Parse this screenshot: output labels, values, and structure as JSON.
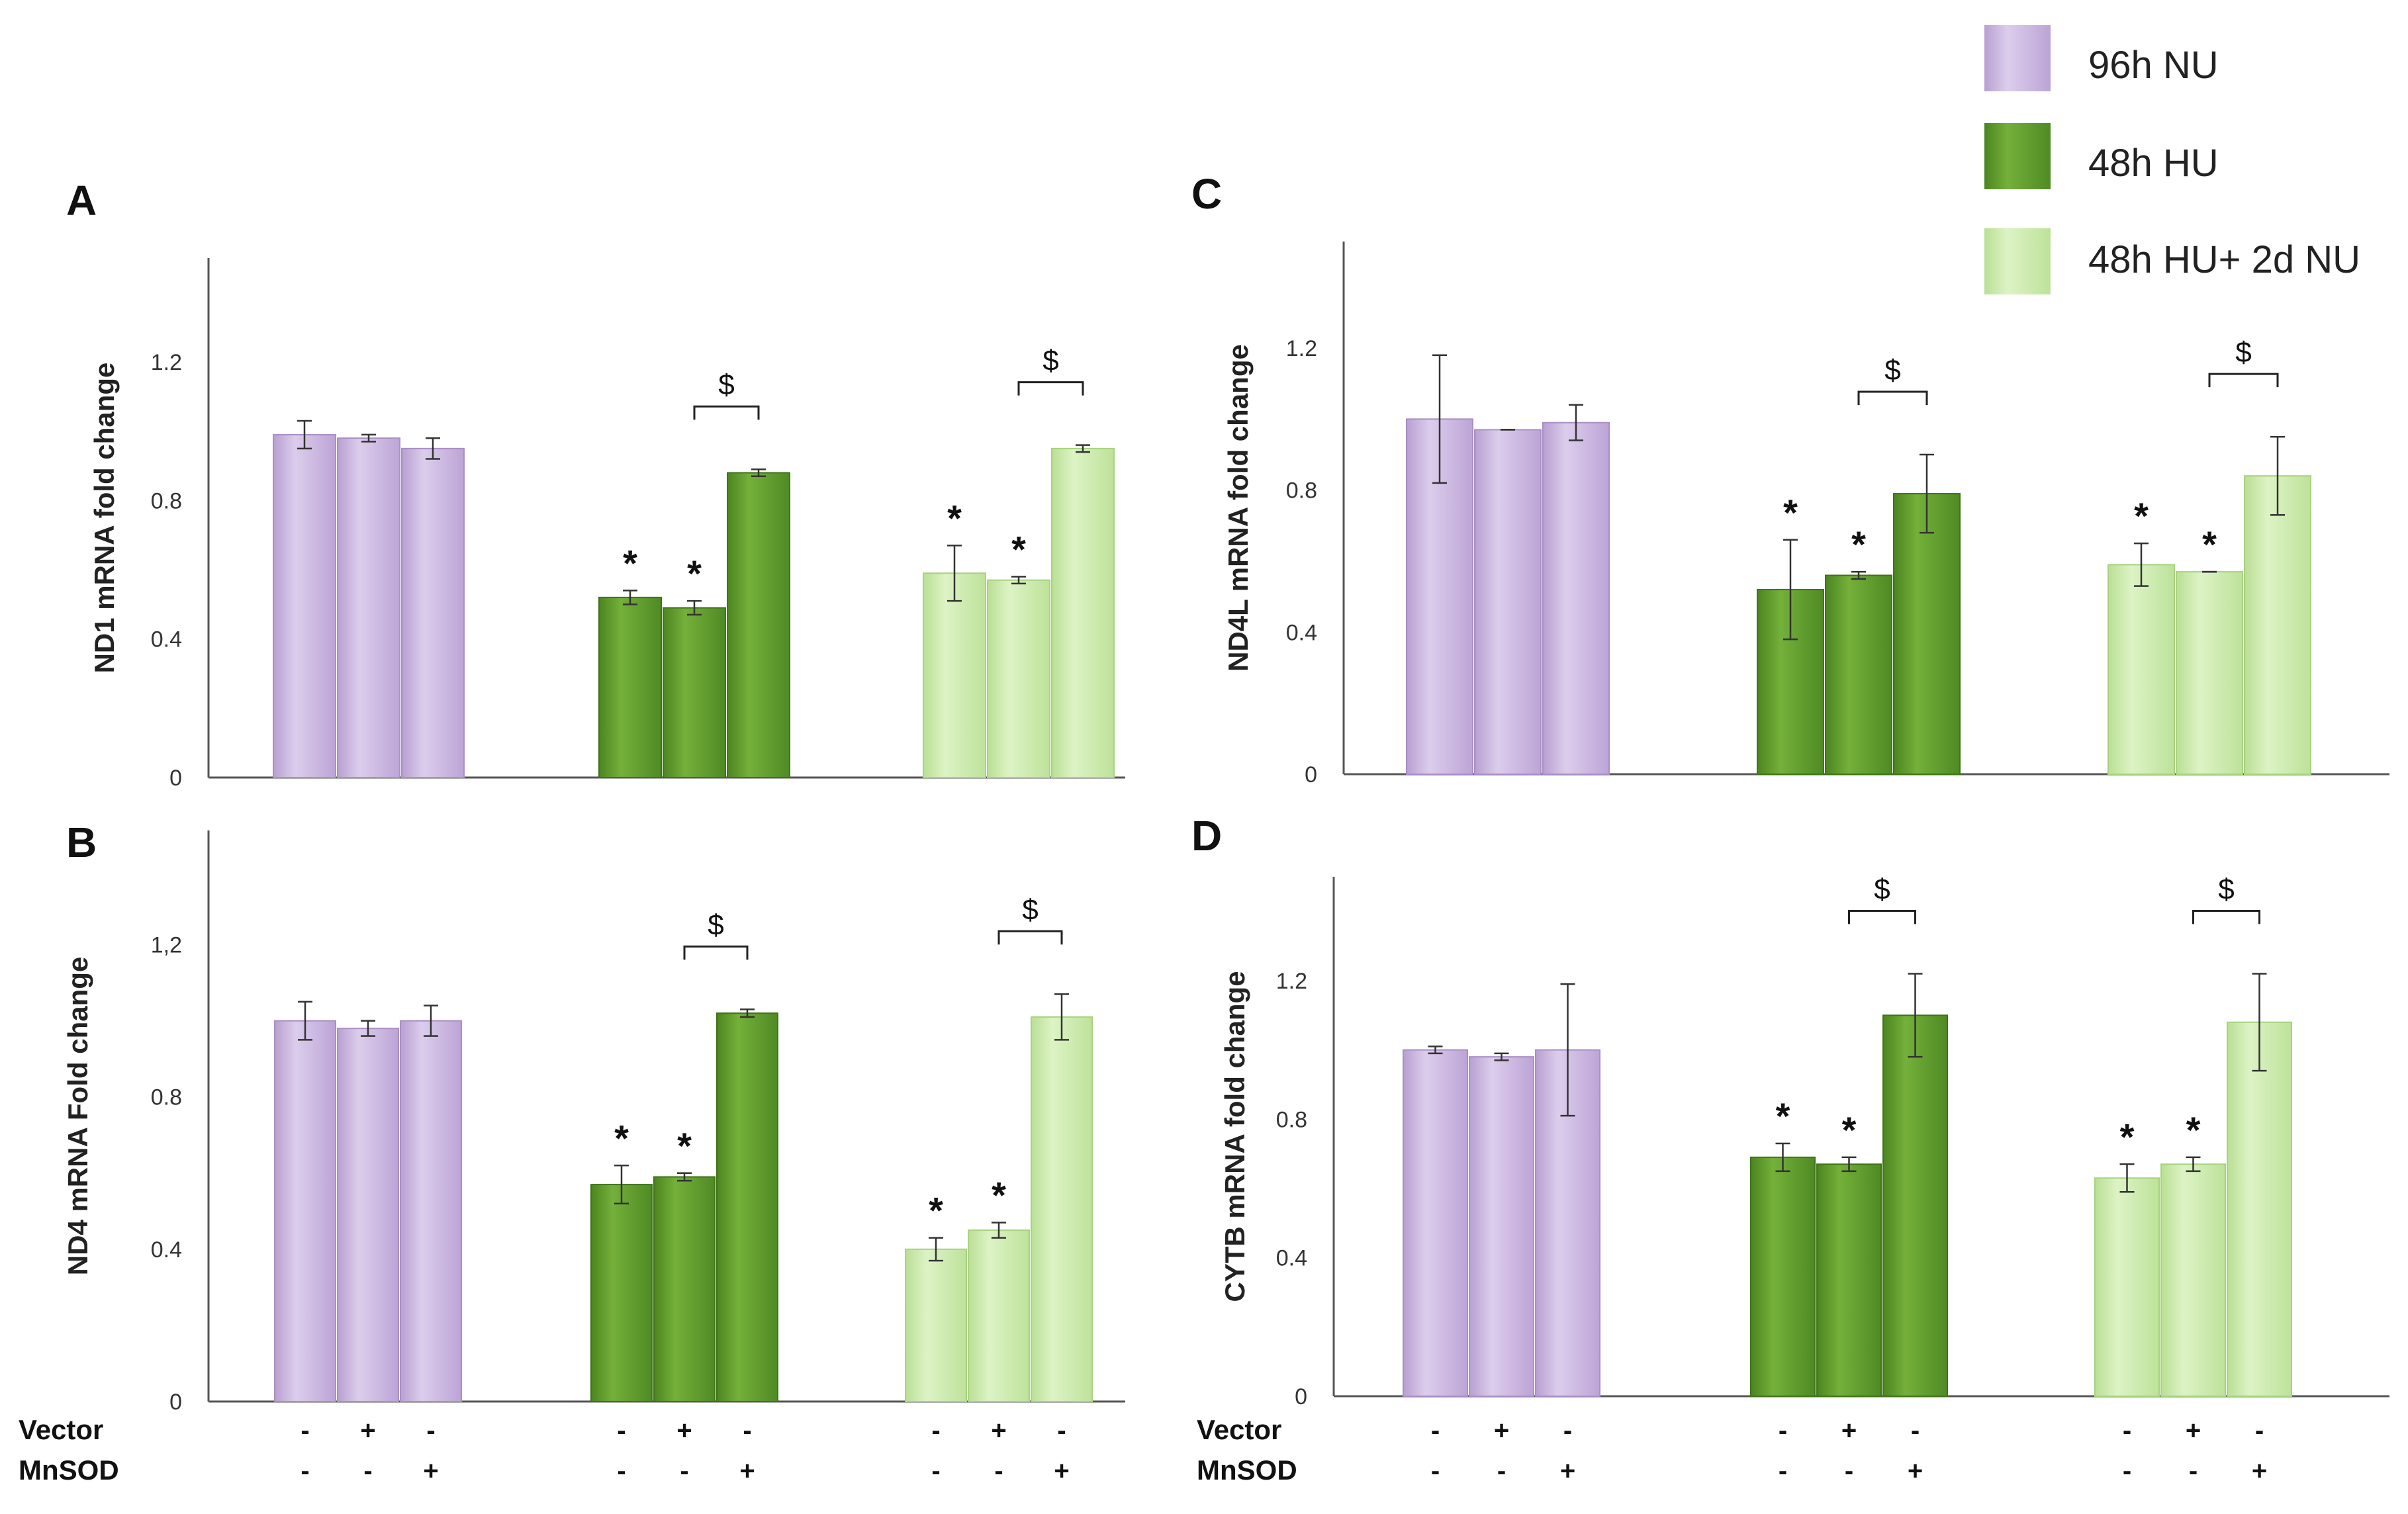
{
  "colors": {
    "96h NU": "#cbb6e0",
    "48h HU": "#5e9a2c",
    "48h HU+ 2d NU": "#c9eaa8",
    "axis": "#333333",
    "error": "#333333"
  },
  "legend": {
    "items": [
      {
        "label": "96h NU",
        "color": "#cbb6e0"
      },
      {
        "label": "48h HU",
        "color": "#5e9a2c"
      },
      {
        "label": "48h HU+ 2d NU",
        "color": "#c9eaa8"
      }
    ]
  },
  "treatment_rows": {
    "vector_label": "Vector",
    "mnsod_label": "MnSOD",
    "vector_signs": [
      "-",
      "+",
      "-"
    ],
    "mnsod_signs": [
      "-",
      "-",
      "+"
    ]
  },
  "chart_data": [
    {
      "panel": "A",
      "type": "bar",
      "ylabel": "ND1 mRNA fold change",
      "ylim": [
        0,
        1.5
      ],
      "yticks": [
        "0",
        "0.4",
        "0.8",
        "1.2"
      ],
      "groups": [
        "96h NU",
        "48h HU",
        "48h HU+ 2d NU"
      ],
      "series": [
        {
          "name": "96h NU",
          "values": [
            0.99,
            0.98,
            0.95
          ],
          "errors": [
            0.04,
            0.01,
            0.03
          ],
          "stars": [
            false,
            false,
            false
          ]
        },
        {
          "name": "48h HU",
          "values": [
            0.52,
            0.49,
            0.88
          ],
          "errors": [
            0.02,
            0.02,
            0.01
          ],
          "stars": [
            true,
            true,
            false
          ]
        },
        {
          "name": "48h HU+ 2d NU",
          "values": [
            0.59,
            0.57,
            0.95
          ],
          "errors": [
            0.08,
            0.01,
            0.01
          ],
          "stars": [
            true,
            true,
            false
          ]
        }
      ],
      "sig_marker": "*",
      "comparison_marker": "$"
    },
    {
      "panel": "B",
      "type": "bar",
      "ylabel": "ND4 mRNA Fold change",
      "ylim": [
        0,
        1.5
      ],
      "yticks": [
        "0",
        "0.4",
        "0.8",
        "1,2"
      ],
      "groups": [
        "96h NU",
        "48h HU",
        "48h HU+ 2d NU"
      ],
      "series": [
        {
          "name": "96h NU",
          "values": [
            1.0,
            0.98,
            1.0
          ],
          "errors": [
            0.05,
            0.02,
            0.04
          ],
          "stars": [
            false,
            false,
            false
          ]
        },
        {
          "name": "48h HU",
          "values": [
            0.57,
            0.59,
            1.02
          ],
          "errors": [
            0.05,
            0.01,
            0.01
          ],
          "stars": [
            true,
            true,
            false
          ]
        },
        {
          "name": "48h HU+ 2d NU",
          "values": [
            0.4,
            0.45,
            1.01
          ],
          "errors": [
            0.03,
            0.02,
            0.06
          ],
          "stars": [
            true,
            true,
            false
          ]
        }
      ],
      "sig_marker": "*",
      "comparison_marker": "$"
    },
    {
      "panel": "C",
      "type": "bar",
      "ylabel": "ND4L mRNA fold change",
      "ylim": [
        0,
        1.5
      ],
      "yticks": [
        "0",
        "0.4",
        "0.8",
        "1.2"
      ],
      "groups": [
        "96h NU",
        "48h HU",
        "48h HU+ 2d NU"
      ],
      "series": [
        {
          "name": "96h NU",
          "values": [
            1.0,
            0.97,
            0.99
          ],
          "errors": [
            0.18,
            0.0,
            0.05
          ],
          "stars": [
            false,
            false,
            false
          ]
        },
        {
          "name": "48h HU",
          "values": [
            0.52,
            0.56,
            0.79
          ],
          "errors": [
            0.14,
            0.01,
            0.11
          ],
          "stars": [
            true,
            true,
            false
          ]
        },
        {
          "name": "48h HU+ 2d NU",
          "values": [
            0.59,
            0.57,
            0.84
          ],
          "errors": [
            0.06,
            0.0,
            0.11
          ],
          "stars": [
            true,
            true,
            false
          ]
        }
      ],
      "sig_marker": "*",
      "comparison_marker": "$"
    },
    {
      "panel": "D",
      "type": "bar",
      "ylabel": "CYTB mRNA fold change",
      "ylim": [
        0,
        1.5
      ],
      "yticks": [
        "0",
        "0.4",
        "0.8",
        "1.2"
      ],
      "groups": [
        "96h NU",
        "48h HU",
        "48h HU+ 2d NU"
      ],
      "series": [
        {
          "name": "96h NU",
          "values": [
            1.0,
            0.98,
            1.0
          ],
          "errors": [
            0.01,
            0.01,
            0.19
          ],
          "stars": [
            false,
            false,
            false
          ]
        },
        {
          "name": "48h HU",
          "values": [
            0.69,
            0.67,
            1.1
          ],
          "errors": [
            0.04,
            0.02,
            0.12
          ],
          "stars": [
            true,
            true,
            false
          ]
        },
        {
          "name": "48h HU+ 2d NU",
          "values": [
            0.63,
            0.67,
            1.08
          ],
          "errors": [
            0.04,
            0.02,
            0.14
          ],
          "stars": [
            true,
            true,
            false
          ]
        }
      ],
      "sig_marker": "*",
      "comparison_marker": "$"
    }
  ]
}
